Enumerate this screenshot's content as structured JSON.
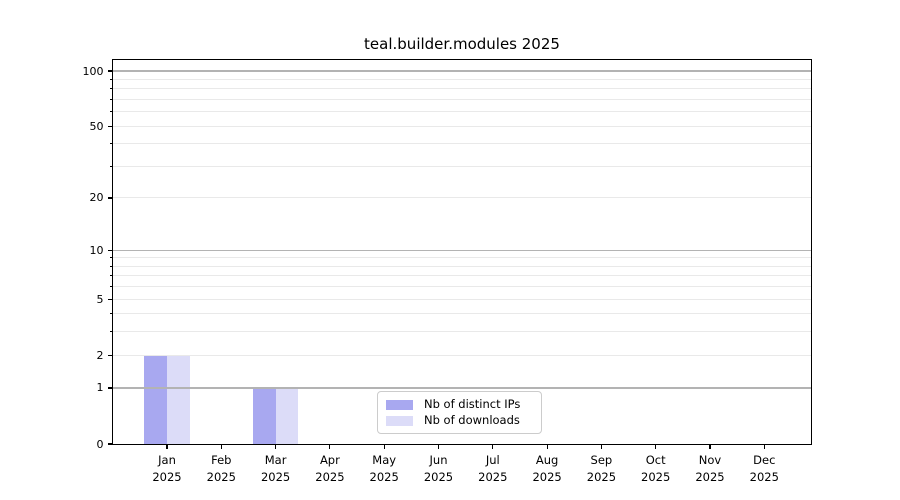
{
  "chart_data": {
    "type": "bar",
    "title": "teal.builder.modules 2025",
    "x_categories": [
      {
        "month": "Jan",
        "year": "2025"
      },
      {
        "month": "Feb",
        "year": "2025"
      },
      {
        "month": "Mar",
        "year": "2025"
      },
      {
        "month": "Apr",
        "year": "2025"
      },
      {
        "month": "May",
        "year": "2025"
      },
      {
        "month": "Jun",
        "year": "2025"
      },
      {
        "month": "Jul",
        "year": "2025"
      },
      {
        "month": "Aug",
        "year": "2025"
      },
      {
        "month": "Sep",
        "year": "2025"
      },
      {
        "month": "Oct",
        "year": "2025"
      },
      {
        "month": "Nov",
        "year": "2025"
      },
      {
        "month": "Dec",
        "year": "2025"
      }
    ],
    "series": [
      {
        "name": "Nb of distinct IPs",
        "color": "#a8a8f0",
        "values": [
          2,
          0,
          1,
          0,
          0,
          0,
          0,
          0,
          0,
          0,
          0,
          0
        ]
      },
      {
        "name": "Nb of downloads",
        "color": "#dcdcf8",
        "values": [
          2,
          0,
          1,
          0,
          0,
          0,
          0,
          0,
          0,
          0,
          0,
          0
        ]
      }
    ],
    "y_axis": {
      "scale": "log1p",
      "labeled_ticks": [
        0,
        1,
        2,
        5,
        10,
        20,
        50,
        100
      ],
      "major_grid_values": [
        1,
        10,
        100
      ],
      "minor_grid_values": [
        2,
        3,
        4,
        5,
        6,
        7,
        8,
        9,
        20,
        30,
        40,
        50,
        60,
        70,
        80,
        90
      ],
      "ymin": 0,
      "ymax_visible": 114
    },
    "legend": {
      "entries": [
        "Nb of distinct IPs",
        "Nb of downloads"
      ],
      "position": "lower center"
    },
    "grid": true
  },
  "colors": {
    "bar_distinct_ips": "#a8a8f0",
    "bar_downloads": "#dcdcf8",
    "major_grid": "#b3b3b3",
    "minor_grid": "#e9e9e9",
    "spine": "#000000",
    "text": "#000000",
    "legend_border": "#cccccc",
    "background": "#ffffff"
  }
}
